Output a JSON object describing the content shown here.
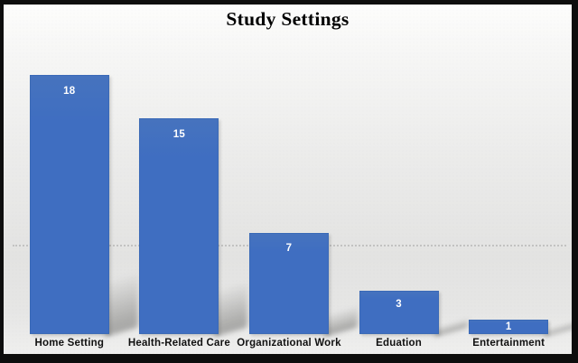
{
  "chart_data": {
    "type": "bar",
    "title": "Study Settings",
    "categories": [
      "Home Setting",
      "Health-Related Care",
      "Organizational Work",
      "Eduation",
      "Entertainment"
    ],
    "values": [
      18,
      15,
      7,
      3,
      1
    ],
    "value_labels": [
      "18",
      "15",
      "7",
      "3",
      "1"
    ],
    "xlabel": "",
    "ylabel": "",
    "ylim": [
      0,
      18
    ],
    "grid": false,
    "legend": false,
    "bar_color": "#3F6EC1",
    "bar_color_top": "#4673BE",
    "bar_border_color": "#3261A8",
    "value_label_color": "#FFFFFF",
    "category_label_color": "#111111",
    "title_color": "#000000",
    "frame_color": "#0D0D0D",
    "background_top": "#FDFDFC",
    "background_bottom": "#EFEFEE",
    "shadow_color": "#8C8C8A"
  }
}
